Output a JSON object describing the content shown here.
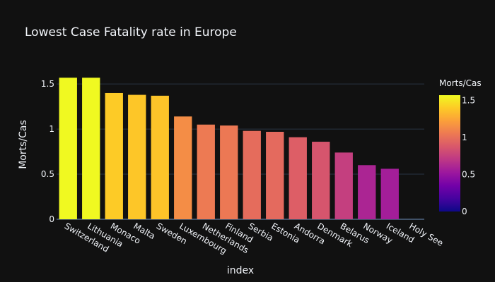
{
  "chart_data": {
    "type": "bar",
    "title": "Lowest Case Fatality rate in Europe",
    "xlabel": "index",
    "ylabel": "Morts/Cas",
    "categories": [
      "Switzerland",
      "Lithuania",
      "Monaco",
      "Malta",
      "Sweden",
      "Luxembourg",
      "Netherlands",
      "Finland",
      "Serbia",
      "Estonia",
      "Andorra",
      "Denmark",
      "Belarus",
      "Norway",
      "Iceland",
      "Holy See"
    ],
    "values": [
      1.57,
      1.57,
      1.4,
      1.38,
      1.37,
      1.14,
      1.05,
      1.04,
      0.98,
      0.97,
      0.91,
      0.86,
      0.74,
      0.6,
      0.56,
      0
    ],
    "ylim": [
      0,
      1.65
    ],
    "yticks": [
      0,
      0.5,
      1,
      1.5
    ],
    "ytick_labels": [
      "0",
      "0.5",
      "1",
      "1.5"
    ],
    "colorbar": {
      "title": "Morts/Cas",
      "range": [
        0,
        1.57
      ],
      "ticks": [
        0,
        0.5,
        1,
        1.5
      ],
      "tick_labels": [
        "0",
        "0.5",
        "1",
        "1.5"
      ],
      "colorscale": [
        "#0d0887",
        "#46039f",
        "#7201a8",
        "#9c179e",
        "#bd3786",
        "#d8576b",
        "#ed7953",
        "#fb9f3a",
        "#fdca26",
        "#f0f921"
      ]
    },
    "grid": true,
    "colors": {
      "background": "#111111",
      "grid": "#283442",
      "text": "#f2f5fa"
    }
  }
}
